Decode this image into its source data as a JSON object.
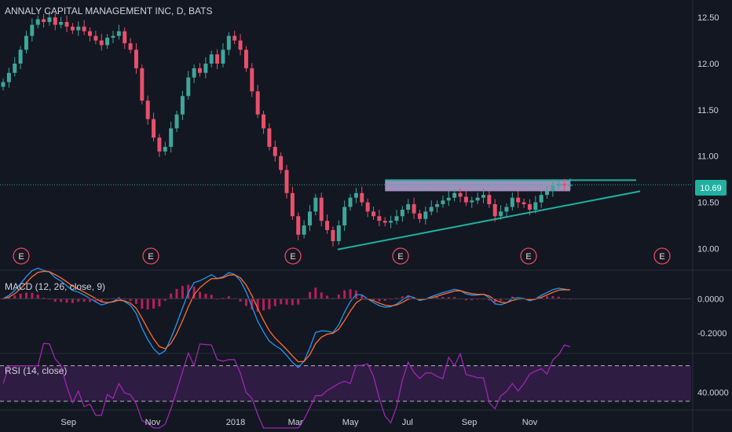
{
  "chart_data": {
    "type": "candlestick",
    "title": "ANNALY CAPITAL MANAGEMENT INC, D, BATS",
    "interval": "D",
    "grid": false,
    "colors": {
      "background": "#131722",
      "up": "#3ea69a",
      "down": "#e8506a",
      "trend": "#1fb1a0",
      "band": "#b7a6d6",
      "macd": "#2196f3",
      "signal": "#ff6d2d",
      "hist": "#e0206a",
      "rsi": "#9c27b0",
      "rsi_band": "#3a1f4d",
      "earnings": "#e54b5b"
    },
    "x_labels": [
      "Sep",
      "Nov",
      "2018",
      "Mar",
      "May",
      "Jul",
      "Sep",
      "Nov"
    ],
    "price_axis": {
      "ticks": [
        "12.50",
        "12.00",
        "11.50",
        "11.00",
        "10.50",
        "10.00"
      ],
      "ylim": [
        9.8,
        12.62
      ]
    },
    "last_price": "10.69",
    "close_series": [
      11.8,
      11.9,
      12.0,
      12.15,
      12.3,
      12.42,
      12.48,
      12.45,
      12.5,
      12.42,
      12.45,
      12.4,
      12.36,
      12.4,
      12.35,
      12.3,
      12.25,
      12.2,
      12.28,
      12.3,
      12.35,
      12.22,
      12.15,
      11.95,
      11.6,
      11.4,
      11.2,
      11.05,
      11.1,
      11.3,
      11.45,
      11.65,
      11.85,
      11.95,
      11.9,
      12.0,
      12.1,
      12.0,
      12.15,
      12.3,
      12.25,
      12.15,
      11.95,
      11.7,
      11.45,
      11.3,
      11.1,
      11.0,
      10.85,
      10.6,
      10.35,
      10.15,
      10.25,
      10.4,
      10.55,
      10.3,
      10.2,
      10.08,
      10.25,
      10.45,
      10.55,
      10.6,
      10.5,
      10.4,
      10.35,
      10.3,
      10.28,
      10.3,
      10.35,
      10.42,
      10.48,
      10.38,
      10.32,
      10.4,
      10.45,
      10.48,
      10.52,
      10.55,
      10.6,
      10.56,
      10.5,
      10.52,
      10.55,
      10.58,
      10.48,
      10.35,
      10.4,
      10.45,
      10.55,
      10.5,
      10.48,
      10.42,
      10.5,
      10.58,
      10.62,
      10.68,
      10.7,
      10.68,
      10.69
    ],
    "resistance": {
      "high": 10.74,
      "low": 10.62,
      "label": ""
    },
    "support_line": {
      "from": 9.99,
      "to": 10.62
    },
    "earnings_marker": "E",
    "macd": {
      "label": "MACD (12, 26, close, 9)",
      "ticks": [
        "0.0000",
        "-0.2000"
      ],
      "ylim": [
        -0.31,
        0.13
      ]
    },
    "rsi": {
      "label": "RSI (14, close)",
      "ticks": [
        "40.0000"
      ],
      "ylim": [
        22,
        82
      ],
      "band": [
        30,
        70
      ]
    }
  }
}
